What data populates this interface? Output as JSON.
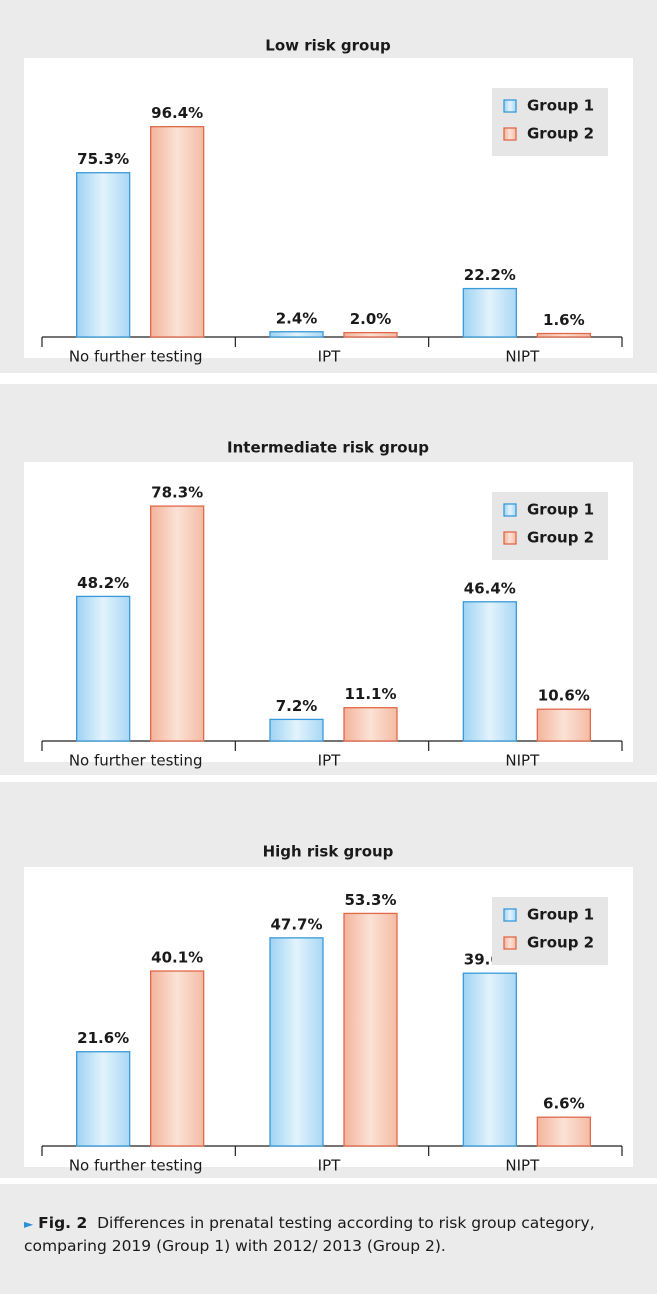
{
  "chart_data": [
    {
      "type": "bar",
      "title": "Low risk group",
      "categories": [
        "No further testing",
        "IPT",
        "NIPT"
      ],
      "series": [
        {
          "name": "Group 1",
          "color": "#3a9ad9",
          "values": [
            75.3,
            2.4,
            22.2
          ],
          "value_labels": [
            "75.3%",
            "2.4%",
            "22.2%"
          ]
        },
        {
          "name": "Group 2",
          "color": "#e0694a",
          "values": [
            96.4,
            2.0,
            1.6
          ],
          "value_labels": [
            "96.4%",
            "2.0%",
            "1.6%"
          ]
        }
      ],
      "ylim": [
        0,
        110
      ],
      "legend": "upper right"
    },
    {
      "type": "bar",
      "title": "Intermediate risk group",
      "categories": [
        "No further testing",
        "IPT",
        "NIPT"
      ],
      "series": [
        {
          "name": "Group 1",
          "color": "#3a9ad9",
          "values": [
            48.2,
            7.2,
            46.4
          ],
          "value_labels": [
            "48.2%",
            "7.2%",
            "46.4%"
          ]
        },
        {
          "name": "Group 2",
          "color": "#e0694a",
          "values": [
            78.3,
            11.1,
            10.6
          ],
          "value_labels": [
            "78.3%",
            "11.1%",
            "10.6%"
          ]
        }
      ],
      "ylim": [
        0,
        80
      ],
      "legend": "upper right"
    },
    {
      "type": "bar",
      "title": "High risk group",
      "categories": [
        "No further testing",
        "IPT",
        "NIPT"
      ],
      "series": [
        {
          "name": "Group 1",
          "color": "#3a9ad9",
          "values": [
            21.6,
            47.7,
            39.6
          ],
          "value_labels": [
            "21.6%",
            "47.7%",
            "39.6%"
          ]
        },
        {
          "name": "Group 2",
          "color": "#e0694a",
          "values": [
            40.1,
            53.3,
            6.6
          ],
          "value_labels": [
            "40.1%",
            "53.3%",
            "6.6%"
          ]
        }
      ],
      "ylim": [
        0,
        55
      ],
      "legend": "upper right"
    }
  ],
  "caption": {
    "label": "Fig. 2",
    "text": "Differences in prenatal testing according to risk group category, comparing 2019 (Group 1) with 2012/ 2013 (Group 2)."
  }
}
